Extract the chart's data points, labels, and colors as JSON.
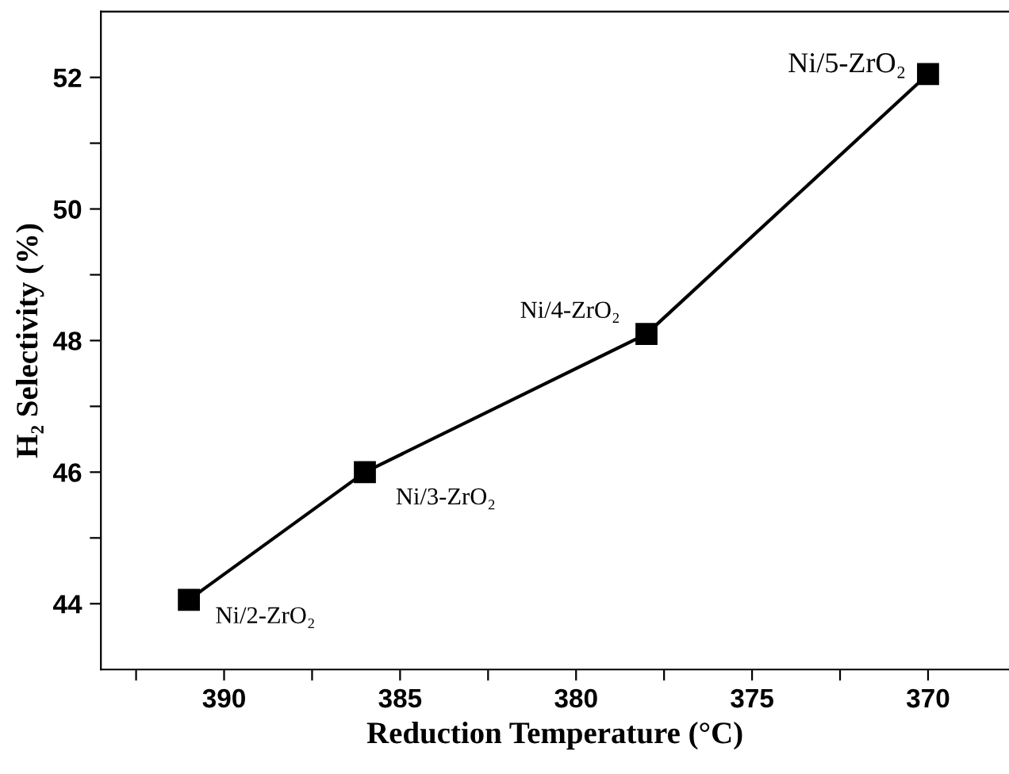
{
  "chart_data": {
    "type": "line",
    "xlabel": "Reduction Temperature (°C)",
    "ylabel": "H₂ Selectivity (%)",
    "x": [
      391,
      386,
      378,
      370
    ],
    "series": [
      {
        "color": "#000000",
        "values": [
          44.06,
          46.0,
          48.1,
          52.05
        ]
      }
    ],
    "marker": "square",
    "line_style": "solid",
    "grid": false,
    "xlim": [
      393.5,
      367.7
    ],
    "ylim": [
      43,
      53
    ],
    "xticks": [
      {
        "value": 392.5,
        "label": null
      },
      390,
      {
        "value": 387.5,
        "label": null
      },
      385,
      {
        "value": 382.5,
        "label": null
      },
      380,
      {
        "value": 377.5,
        "label": null
      },
      375,
      {
        "value": 372.5,
        "label": null
      },
      370
    ],
    "yticks": [
      44,
      {
        "value": 45,
        "label": null
      },
      46,
      {
        "value": 47,
        "label": null
      },
      48,
      {
        "value": 49,
        "label": null
      },
      50,
      {
        "value": 51,
        "label": null
      },
      52
    ],
    "annotations": [
      {
        "text": "Ni/2-ZrO₂",
        "x": 391,
        "y": 44.06
      },
      {
        "text": "Ni/3-ZrO₂",
        "x": 386,
        "y": 46.0
      },
      {
        "text": "Ni/4-ZrO₂",
        "x": 378,
        "y": 48.1
      },
      {
        "text": "Ni/5-ZrO₂",
        "x": 370,
        "y": 52.05
      }
    ]
  }
}
